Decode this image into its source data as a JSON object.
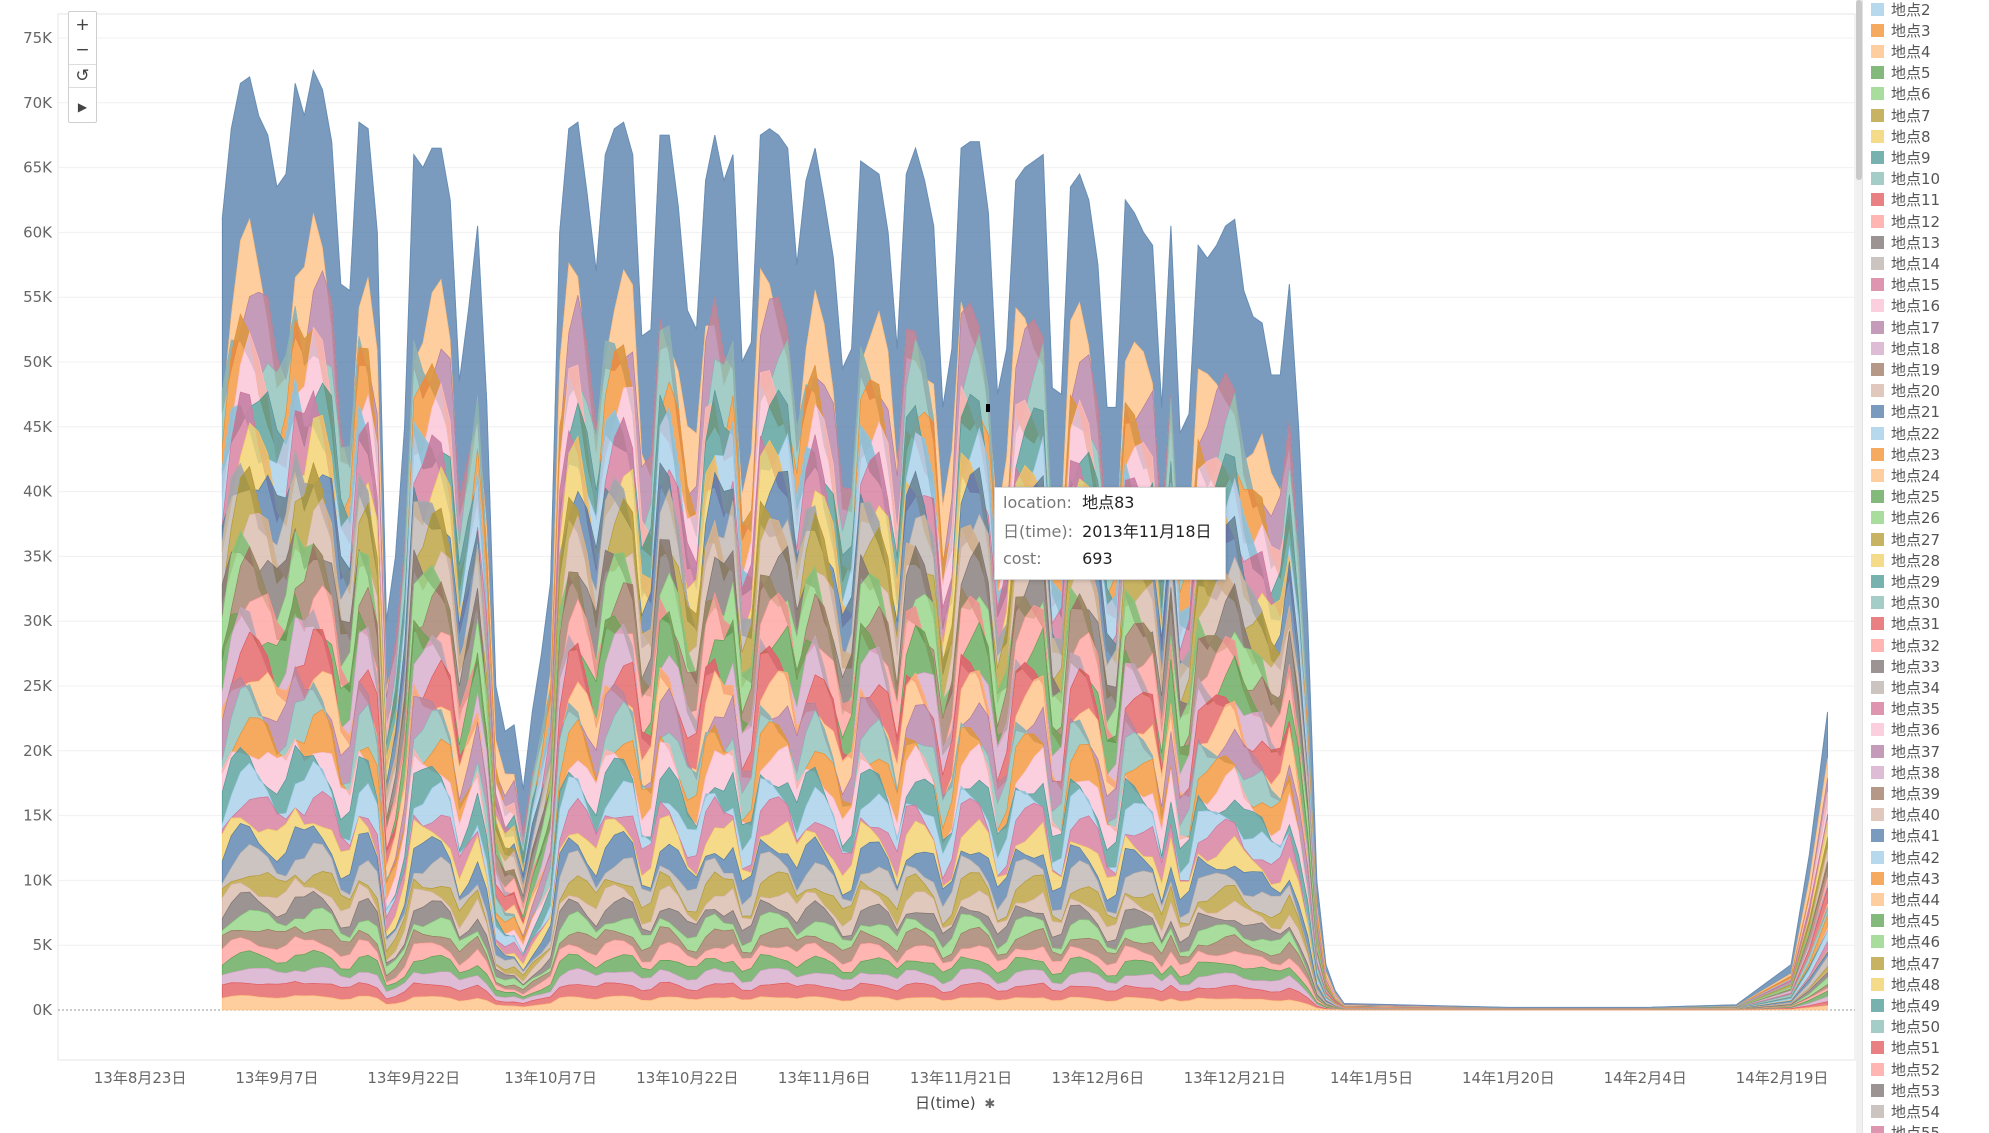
{
  "chart_data": {
    "type": "area",
    "stacked": true,
    "xlabel": "日(time)",
    "ylabel": "cost",
    "ylim": [
      0,
      75000
    ],
    "yticks": [
      0,
      5000,
      10000,
      15000,
      20000,
      25000,
      30000,
      35000,
      40000,
      45000,
      50000,
      55000,
      60000,
      65000,
      70000,
      75000
    ],
    "ytick_labels": [
      "0K",
      "5K",
      "10K",
      "15K",
      "20K",
      "25K",
      "30K",
      "35K",
      "40K",
      "45K",
      "50K",
      "55K",
      "60K",
      "65K",
      "70K",
      "75K"
    ],
    "x_range": [
      "2013-08-14",
      "2014-02-27"
    ],
    "xtick_dates": [
      "2013-08-23",
      "2013-09-07",
      "2013-09-22",
      "2013-10-07",
      "2013-10-22",
      "2013-11-06",
      "2013-11-21",
      "2013-12-06",
      "2013-12-21",
      "2014-01-05",
      "2014-01-20",
      "2014-02-04",
      "2014-02-19"
    ],
    "xtick_labels": [
      "13年8月23日",
      "13年9月7日",
      "13年9月22日",
      "13年10月7日",
      "13年10月22日",
      "13年11月6日",
      "13年11月21日",
      "13年12月6日",
      "13年12月21日",
      "14年1月5日",
      "14年1月20日",
      "14年2月4日",
      "14年2月19日"
    ],
    "grid": true,
    "legend_position": "right",
    "legend": [
      "地点2",
      "地点3",
      "地点4",
      "地点5",
      "地点6",
      "地点7",
      "地点8",
      "地点9",
      "地点10",
      "地点11",
      "地点12",
      "地点13",
      "地点14",
      "地点15",
      "地点16",
      "地点17",
      "地点18",
      "地点19",
      "地点20",
      "地点21",
      "地点22",
      "地点23",
      "地点24",
      "地点25",
      "地点26",
      "地点27",
      "地点28",
      "地点29",
      "地点30",
      "地点31",
      "地点32",
      "地点33",
      "地点34",
      "地点35",
      "地点36",
      "地点37",
      "地点38",
      "地点39",
      "地点40",
      "地点41",
      "地点42",
      "地点43",
      "地点44",
      "地点45",
      "地点46",
      "地点47",
      "地点48",
      "地点49",
      "地点50",
      "地点51",
      "地点52",
      "地点53",
      "地点54",
      "地点55"
    ],
    "palette": [
      "#4e79a7",
      "#a0cbe8",
      "#f28e2b",
      "#ffbe7d",
      "#59a14f",
      "#8cd17d",
      "#b6992d",
      "#f1ce63",
      "#499894",
      "#86bcb6",
      "#e15759",
      "#ff9d9a",
      "#79706e",
      "#bab0ac",
      "#d37295",
      "#fabfd2",
      "#b07aa1",
      "#d4a6c8",
      "#9d7660",
      "#d7b5a6"
    ],
    "total_series": {
      "name": "total cost (top of stack)",
      "points": [
        [
          "2013-09-01",
          61000
        ],
        [
          "2013-09-02",
          68000
        ],
        [
          "2013-09-03",
          71500
        ],
        [
          "2013-09-04",
          72000
        ],
        [
          "2013-09-05",
          69000
        ],
        [
          "2013-09-06",
          67500
        ],
        [
          "2013-09-07",
          63500
        ],
        [
          "2013-09-08",
          64500
        ],
        [
          "2013-09-09",
          71500
        ],
        [
          "2013-09-10",
          69000
        ],
        [
          "2013-09-11",
          72500
        ],
        [
          "2013-09-12",
          71000
        ],
        [
          "2013-09-13",
          67000
        ],
        [
          "2013-09-14",
          56000
        ],
        [
          "2013-09-15",
          55500
        ],
        [
          "2013-09-16",
          68500
        ],
        [
          "2013-09-17",
          68000
        ],
        [
          "2013-09-18",
          60000
        ],
        [
          "2013-09-19",
          30000
        ],
        [
          "2013-09-20",
          35000
        ],
        [
          "2013-09-21",
          45000
        ],
        [
          "2013-09-22",
          66000
        ],
        [
          "2013-09-23",
          65000
        ],
        [
          "2013-09-24",
          66500
        ],
        [
          "2013-09-25",
          66500
        ],
        [
          "2013-09-26",
          62500
        ],
        [
          "2013-09-27",
          48500
        ],
        [
          "2013-09-28",
          54000
        ],
        [
          "2013-09-29",
          60500
        ],
        [
          "2013-09-30",
          47000
        ],
        [
          "2013-10-01",
          25000
        ],
        [
          "2013-10-02",
          21500
        ],
        [
          "2013-10-03",
          22000
        ],
        [
          "2013-10-04",
          17000
        ],
        [
          "2013-10-05",
          23000
        ],
        [
          "2013-10-06",
          27500
        ],
        [
          "2013-10-07",
          33000
        ],
        [
          "2013-10-08",
          60000
        ],
        [
          "2013-10-09",
          68000
        ],
        [
          "2013-10-10",
          68500
        ],
        [
          "2013-10-11",
          63000
        ],
        [
          "2013-10-12",
          57000
        ],
        [
          "2013-10-13",
          66000
        ],
        [
          "2013-10-14",
          68000
        ],
        [
          "2013-10-15",
          68500
        ],
        [
          "2013-10-16",
          66000
        ],
        [
          "2013-10-17",
          52000
        ],
        [
          "2013-10-18",
          52500
        ],
        [
          "2013-10-19",
          67500
        ],
        [
          "2013-10-20",
          67500
        ],
        [
          "2013-10-21",
          62000
        ],
        [
          "2013-10-22",
          54000
        ],
        [
          "2013-10-23",
          52500
        ],
        [
          "2013-10-24",
          64000
        ],
        [
          "2013-10-25",
          67500
        ],
        [
          "2013-10-26",
          64000
        ],
        [
          "2013-10-27",
          66000
        ],
        [
          "2013-10-28",
          50000
        ],
        [
          "2013-10-29",
          51500
        ],
        [
          "2013-10-30",
          67500
        ],
        [
          "2013-10-31",
          68000
        ],
        [
          "2013-11-01",
          67500
        ],
        [
          "2013-11-02",
          66500
        ],
        [
          "2013-11-03",
          57500
        ],
        [
          "2013-11-04",
          64000
        ],
        [
          "2013-11-05",
          66500
        ],
        [
          "2013-11-06",
          62500
        ],
        [
          "2013-11-07",
          58000
        ],
        [
          "2013-11-08",
          49500
        ],
        [
          "2013-11-09",
          51000
        ],
        [
          "2013-11-10",
          65500
        ],
        [
          "2013-11-11",
          65000
        ],
        [
          "2013-11-12",
          64500
        ],
        [
          "2013-11-13",
          60000
        ],
        [
          "2013-11-14",
          51000
        ],
        [
          "2013-11-15",
          64500
        ],
        [
          "2013-11-16",
          66500
        ],
        [
          "2013-11-17",
          64000
        ],
        [
          "2013-11-18",
          60500
        ],
        [
          "2013-11-19",
          46500
        ],
        [
          "2013-11-20",
          51000
        ],
        [
          "2013-11-21",
          66500
        ],
        [
          "2013-11-22",
          67000
        ],
        [
          "2013-11-23",
          67000
        ],
        [
          "2013-11-24",
          61500
        ],
        [
          "2013-11-25",
          47500
        ],
        [
          "2013-11-26",
          51000
        ],
        [
          "2013-11-27",
          64000
        ],
        [
          "2013-11-28",
          65000
        ],
        [
          "2013-11-29",
          65500
        ],
        [
          "2013-11-30",
          66000
        ],
        [
          "2013-12-01",
          48000
        ],
        [
          "2013-12-02",
          47500
        ],
        [
          "2013-12-03",
          63500
        ],
        [
          "2013-12-04",
          64500
        ],
        [
          "2013-12-05",
          62500
        ],
        [
          "2013-12-06",
          57500
        ],
        [
          "2013-12-07",
          46500
        ],
        [
          "2013-12-08",
          46500
        ],
        [
          "2013-12-09",
          62500
        ],
        [
          "2013-12-10",
          61500
        ],
        [
          "2013-12-11",
          60000
        ],
        [
          "2013-12-12",
          59000
        ],
        [
          "2013-12-13",
          46500
        ],
        [
          "2013-12-14",
          60500
        ],
        [
          "2013-12-15",
          44500
        ],
        [
          "2013-12-16",
          46000
        ],
        [
          "2013-12-17",
          59000
        ],
        [
          "2013-12-18",
          58000
        ],
        [
          "2013-12-19",
          59000
        ],
        [
          "2013-12-20",
          60500
        ],
        [
          "2013-12-21",
          61000
        ],
        [
          "2013-12-22",
          55500
        ],
        [
          "2013-12-23",
          53500
        ],
        [
          "2013-12-24",
          53000
        ],
        [
          "2013-12-25",
          49000
        ],
        [
          "2013-12-26",
          49000
        ],
        [
          "2013-12-27",
          56000
        ],
        [
          "2013-12-28",
          45000
        ],
        [
          "2013-12-29",
          30000
        ],
        [
          "2013-12-30",
          10000
        ],
        [
          "2013-12-31",
          3500
        ],
        [
          "2014-01-01",
          1500
        ],
        [
          "2014-01-02",
          500
        ],
        [
          "2014-01-20",
          200
        ],
        [
          "2014-02-04",
          200
        ],
        [
          "2014-02-14",
          400
        ],
        [
          "2014-02-20",
          3500
        ],
        [
          "2014-02-22",
          12000
        ],
        [
          "2014-02-24",
          23000
        ]
      ]
    },
    "annotations": [],
    "tooltip": {
      "location_label": "location:",
      "location_value": "地点83",
      "date_label": "日(time):",
      "date_value": "2013年11月18日",
      "cost_label": "cost:",
      "cost_value": "693"
    }
  },
  "zoom_controls": {
    "zoom_in": "+",
    "zoom_out": "−",
    "reset": "↺",
    "play": "▶"
  }
}
